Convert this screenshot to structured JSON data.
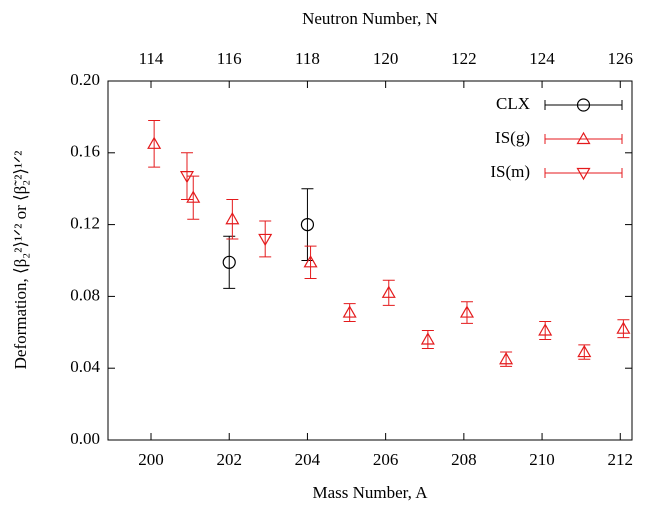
{
  "chart_data": {
    "type": "scatter",
    "xlabel": "Mass Number, A",
    "x2label": "Neutron Number, N",
    "ylabel": "Deformation, ⟨β₂²⟩¹ᐟ² or ⟨β̃₂²⟩¹ᐟ²",
    "xlim": [
      198.9,
      212.3
    ],
    "xticks": [
      200,
      202,
      204,
      206,
      208,
      210,
      212
    ],
    "x2lim": [
      112.9,
      126.3
    ],
    "x2ticks": [
      114,
      116,
      118,
      120,
      122,
      124,
      126
    ],
    "ylim": [
      0,
      0.2
    ],
    "yticks": [
      {
        "value": 0,
        "label": "0.00"
      },
      {
        "value": 0.04,
        "label": "0.04"
      },
      {
        "value": 0.08,
        "label": "0.08"
      },
      {
        "value": 0.12,
        "label": "0.12"
      },
      {
        "value": 0.16,
        "label": "0.16"
      },
      {
        "value": 0.2,
        "label": "0.20"
      }
    ],
    "legend": "upper right",
    "series": [
      {
        "name": "CLX",
        "color": "#000000",
        "marker": "circle",
        "x": [
          202.0,
          204.0
        ],
        "values": [
          0.099,
          0.12
        ],
        "errors": [
          0.0145,
          0.02
        ]
      },
      {
        "name": "IS(g)",
        "color": "#e41a1c",
        "marker": "triangle-up",
        "x": [
          200.08,
          201.08,
          202.08,
          204.08,
          205.08,
          206.08,
          207.08,
          208.08,
          209.08,
          210.08,
          211.08,
          212.08
        ],
        "values": [
          0.165,
          0.135,
          0.123,
          0.099,
          0.071,
          0.082,
          0.056,
          0.071,
          0.045,
          0.061,
          0.049,
          0.062
        ],
        "errors": [
          0.013,
          0.012,
          0.011,
          0.009,
          0.005,
          0.007,
          0.005,
          0.006,
          0.004,
          0.005,
          0.004,
          0.005
        ]
      },
      {
        "name": "IS(m)",
        "color": "#e41a1c",
        "marker": "triangle-down",
        "x": [
          200.92,
          202.92
        ],
        "values": [
          0.147,
          0.112
        ],
        "errors": [
          0.013,
          0.01
        ]
      }
    ]
  }
}
